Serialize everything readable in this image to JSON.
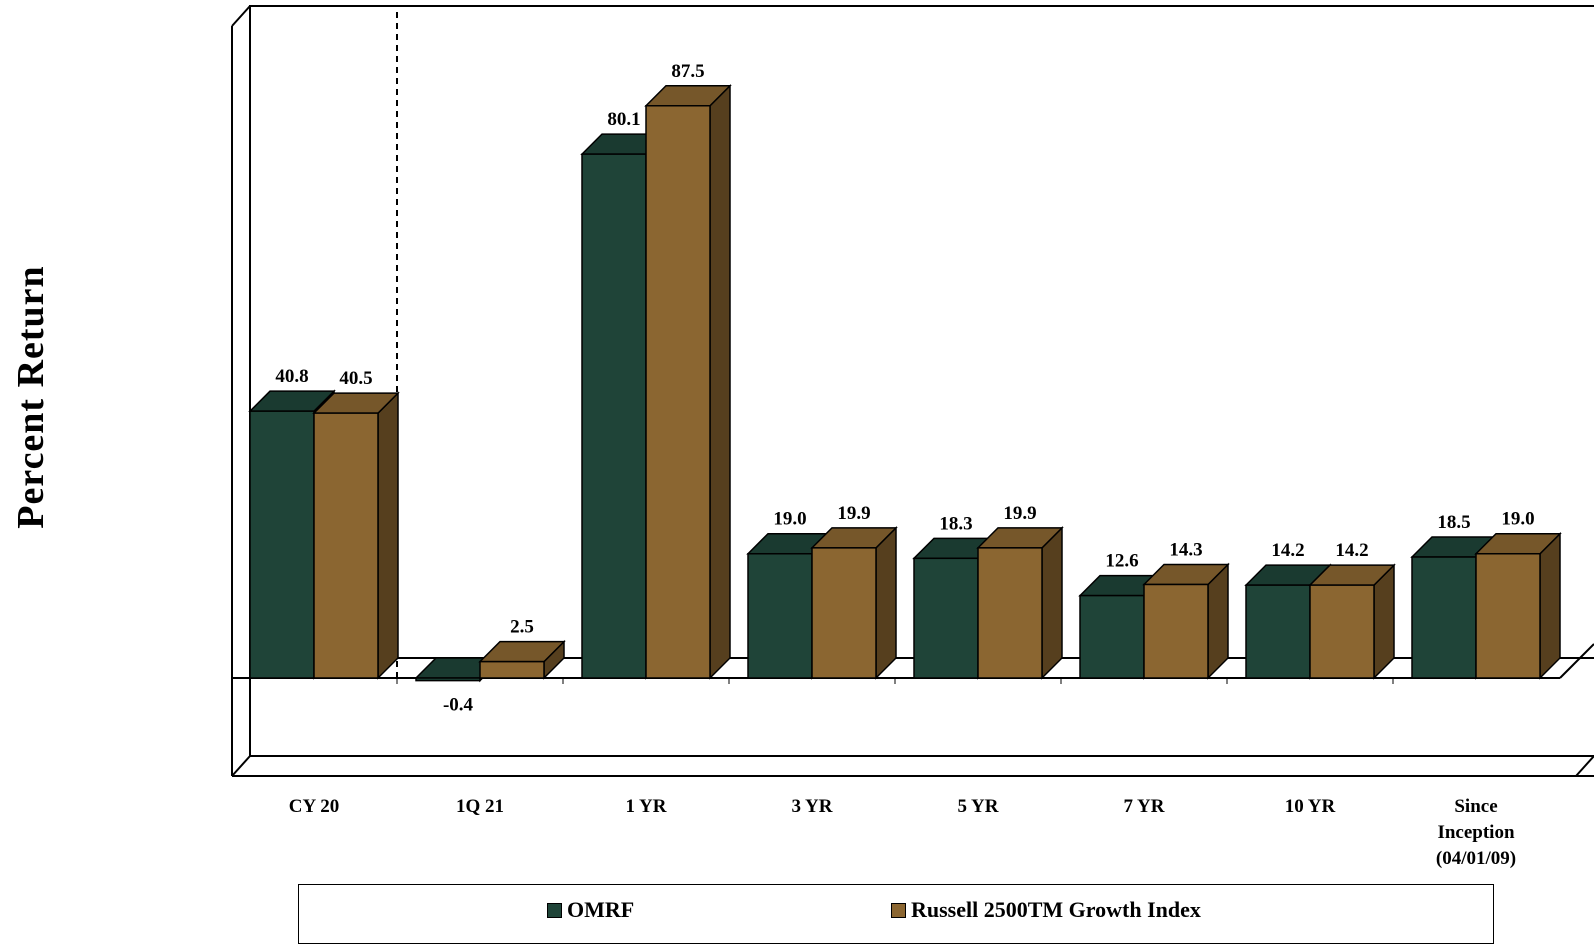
{
  "chart_data": {
    "type": "bar",
    "ylabel": "Percent Return",
    "categories": [
      [
        "CY 20"
      ],
      [
        "1Q 21"
      ],
      [
        "1 YR"
      ],
      [
        "3 YR"
      ],
      [
        "5 YR"
      ],
      [
        "7 YR"
      ],
      [
        "10 YR"
      ],
      [
        "Since",
        "Inception",
        "(04/01/09)"
      ]
    ],
    "series": [
      {
        "name": "OMRF",
        "color": "#1f4438",
        "values": [
          40.8,
          -0.4,
          80.1,
          19.0,
          18.3,
          12.6,
          14.2,
          18.5
        ],
        "labels": [
          "40.8",
          "-0.4",
          "80.1",
          "19.0",
          "18.3",
          "12.6",
          "14.2",
          "18.5"
        ]
      },
      {
        "name": "Russell 2500TM Growth Index",
        "color": "#8b6631",
        "values": [
          40.5,
          2.5,
          87.5,
          19.9,
          19.9,
          14.3,
          14.2,
          19.0
        ],
        "labels": [
          "40.5",
          "2.5",
          "87.5",
          "19.9",
          "19.9",
          "14.3",
          "14.2",
          "19.0"
        ]
      }
    ],
    "grid": false,
    "legend": "bottom",
    "style": "3d-bar",
    "separator_after_category": 0
  }
}
